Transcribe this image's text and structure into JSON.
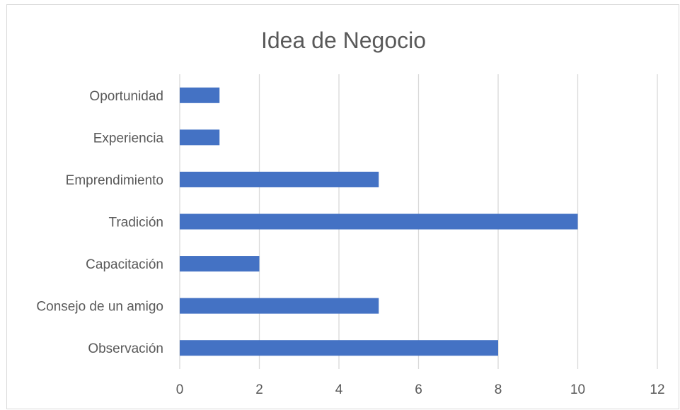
{
  "chart_data": {
    "type": "bar",
    "orientation": "horizontal",
    "title": "Idea de Negocio",
    "categories": [
      "Oportunidad",
      "Experiencia",
      "Emprendimiento",
      "Tradición",
      "Capacitación",
      "Consejo de un amigo",
      "Observación"
    ],
    "values": [
      1,
      1,
      5,
      10,
      2,
      5,
      8
    ],
    "xlim": [
      0,
      12
    ],
    "xticks": [
      "0",
      "2",
      "4",
      "6",
      "8",
      "10",
      "12"
    ],
    "grid": true,
    "legend": "none",
    "bar_color": "#4472c4"
  }
}
